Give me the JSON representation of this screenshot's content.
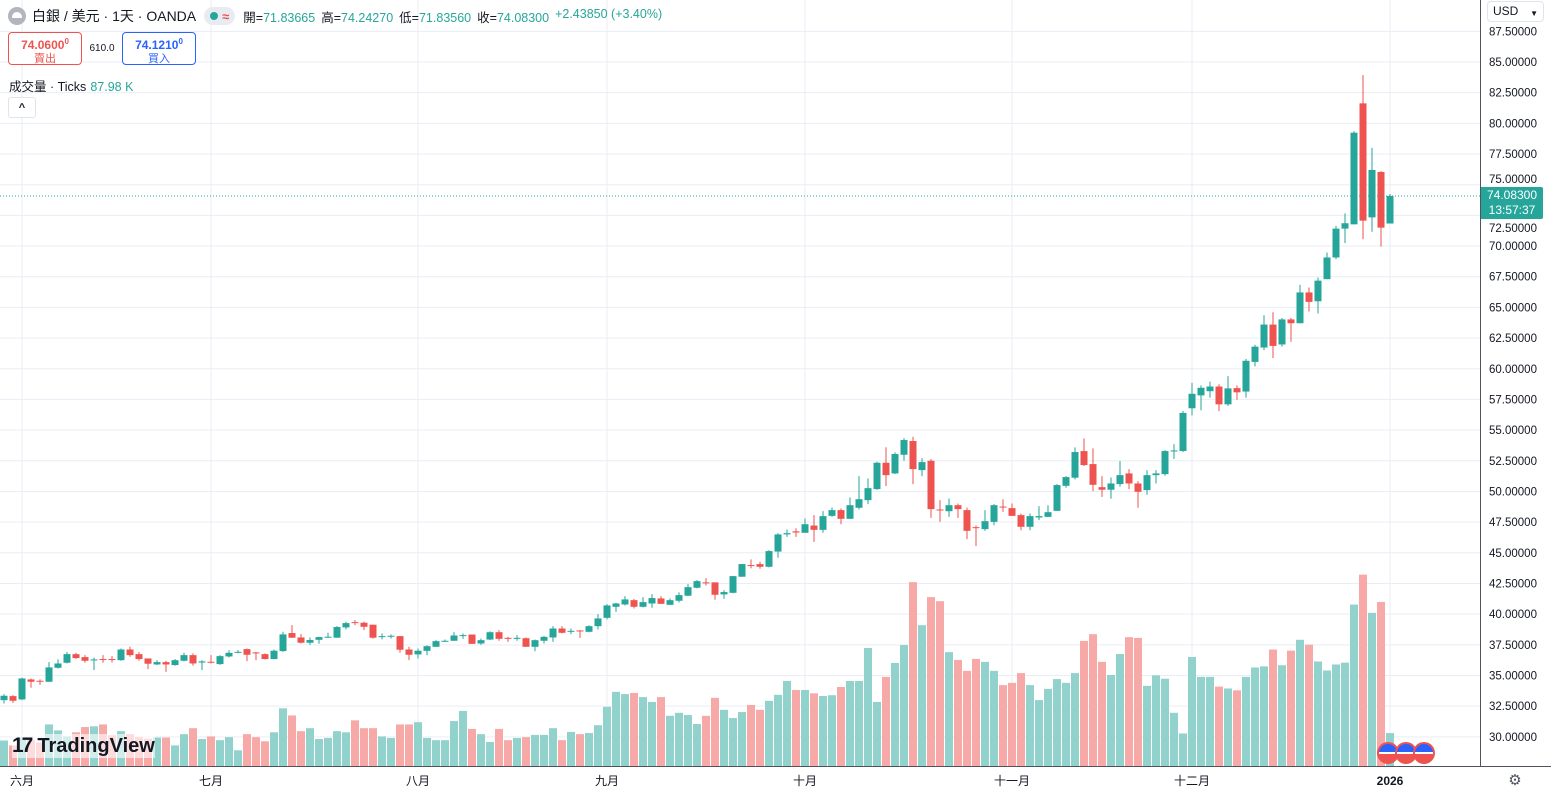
{
  "header": {
    "symbol": "白銀 / 美元 · 1天 · OANDA",
    "open_label": "開=",
    "open": "71.83665",
    "high_label": "高=",
    "high": "74.24270",
    "low_label": "低=",
    "low": "71.83560",
    "close_label": "收=",
    "close": "74.08300",
    "change": "+2.43850 (+3.40%)"
  },
  "trade": {
    "sell_price": "74.0600",
    "sell_super": "0",
    "sell_label": "賣出",
    "spread": "610.0",
    "buy_price": "74.1210",
    "buy_super": "0",
    "buy_label": "買入"
  },
  "volume_legend": {
    "label": "成交量 · Ticks",
    "value": "87.98 K"
  },
  "collapse_icon": "chevron-up-icon",
  "currency": "USD",
  "last_price": {
    "price": "74.08300",
    "countdown": "13:57:37"
  },
  "logo_text": "TradingView",
  "colors": {
    "up": "#26a69a",
    "down": "#ef5350",
    "vol_up": "#92d2cc",
    "vol_down": "#f7a9a7",
    "grid": "#e9eef4"
  },
  "chart_data": {
    "type": "candlestick",
    "title": "白銀 / 美元 · 1天 · OANDA",
    "ylim": [
      27.5,
      87.5
    ],
    "y_ticks": [
      "30.00000",
      "32.50000",
      "35.00000",
      "37.50000",
      "40.00000",
      "42.50000",
      "45.00000",
      "47.50000",
      "50.00000",
      "52.50000",
      "55.00000",
      "57.50000",
      "60.00000",
      "62.50000",
      "65.00000",
      "67.50000",
      "70.00000",
      "72.50000",
      "75.00000",
      "77.50000",
      "80.00000",
      "82.50000",
      "85.00000",
      "87.50000"
    ],
    "time_labels": [
      {
        "label": "六月",
        "index": 2
      },
      {
        "label": "七月",
        "index": 23
      },
      {
        "label": "八月",
        "index": 46
      },
      {
        "label": "九月",
        "index": 67
      },
      {
        "label": "十月",
        "index": 89
      },
      {
        "label": "十一月",
        "index": 112
      },
      {
        "label": "十二月",
        "index": 132
      },
      {
        "label": "2026",
        "index": 154
      }
    ],
    "candle_format": [
      "open",
      "close",
      "high",
      "low"
    ],
    "candles": [
      [
        32.99,
        33.35,
        33.48,
        32.72
      ],
      [
        33.32,
        32.94,
        33.4,
        32.77
      ],
      [
        33.05,
        34.76,
        34.82,
        32.99
      ],
      [
        34.68,
        34.49,
        34.76,
        34.0
      ],
      [
        34.57,
        34.52,
        34.68,
        34.24
      ],
      [
        34.49,
        35.66,
        36.09,
        34.49
      ],
      [
        35.63,
        35.98,
        36.31,
        35.57
      ],
      [
        36.04,
        36.74,
        36.93,
        35.98
      ],
      [
        36.74,
        36.42,
        36.85,
        36.36
      ],
      [
        36.5,
        36.2,
        36.66,
        36.04
      ],
      [
        36.25,
        36.31,
        36.47,
        35.44
      ],
      [
        36.34,
        36.28,
        36.66,
        36.04
      ],
      [
        36.34,
        36.28,
        36.58,
        36.06
      ],
      [
        36.25,
        37.12,
        37.2,
        36.2
      ],
      [
        37.12,
        36.66,
        37.34,
        36.53
      ],
      [
        36.74,
        36.34,
        36.93,
        36.2
      ],
      [
        36.39,
        35.96,
        36.39,
        35.52
      ],
      [
        35.9,
        36.09,
        36.25,
        35.85
      ],
      [
        36.09,
        35.9,
        36.2,
        35.3
      ],
      [
        35.85,
        36.25,
        36.34,
        35.79
      ],
      [
        36.2,
        36.66,
        36.85,
        36.15
      ],
      [
        36.66,
        35.98,
        36.8,
        35.79
      ],
      [
        36.06,
        36.15,
        36.25,
        35.44
      ],
      [
        36.12,
        36.06,
        36.66,
        35.98
      ],
      [
        35.93,
        36.58,
        36.66,
        35.87
      ],
      [
        36.55,
        36.85,
        37.07,
        36.47
      ],
      [
        36.88,
        36.93,
        37.07,
        36.8
      ],
      [
        37.15,
        36.69,
        37.2,
        36.17
      ],
      [
        36.88,
        36.82,
        36.93,
        36.25
      ],
      [
        36.74,
        36.34,
        36.8,
        36.31
      ],
      [
        36.34,
        37.02,
        37.12,
        36.31
      ],
      [
        36.99,
        38.35,
        38.57,
        36.93
      ],
      [
        38.46,
        38.08,
        39.11,
        38.08
      ],
      [
        38.1,
        37.67,
        38.38,
        37.61
      ],
      [
        37.67,
        37.89,
        38.1,
        37.5
      ],
      [
        37.91,
        38.13,
        38.16,
        37.59
      ],
      [
        38.1,
        38.16,
        38.48,
        38.08
      ],
      [
        38.08,
        38.95,
        39.03,
        38.08
      ],
      [
        38.92,
        39.27,
        39.38,
        38.76
      ],
      [
        39.35,
        39.3,
        39.52,
        39.11
      ],
      [
        39.3,
        38.97,
        39.38,
        38.7
      ],
      [
        39.14,
        38.08,
        39.14,
        38.0
      ],
      [
        38.16,
        38.21,
        38.43,
        37.94
      ],
      [
        38.21,
        38.24,
        38.35,
        38.02
      ],
      [
        38.21,
        37.1,
        38.21,
        36.85
      ],
      [
        37.12,
        36.69,
        37.34,
        36.25
      ],
      [
        36.72,
        37.02,
        37.2,
        36.39
      ],
      [
        37.01,
        37.39,
        37.47,
        36.66
      ],
      [
        37.34,
        37.8,
        37.88,
        37.34
      ],
      [
        37.8,
        37.83,
        37.93,
        37.74
      ],
      [
        37.83,
        38.26,
        38.53,
        37.83
      ],
      [
        38.23,
        38.29,
        38.42,
        37.99
      ],
      [
        38.34,
        37.58,
        38.34,
        37.58
      ],
      [
        37.61,
        37.88,
        38.02,
        37.5
      ],
      [
        37.93,
        38.53,
        38.61,
        37.88
      ],
      [
        38.53,
        37.99,
        38.7,
        37.83
      ],
      [
        38.07,
        38.02,
        38.15,
        37.74
      ],
      [
        38.02,
        38.07,
        38.29,
        37.83
      ],
      [
        38.04,
        37.34,
        38.1,
        37.34
      ],
      [
        37.34,
        37.88,
        37.93,
        36.98
      ],
      [
        37.83,
        38.15,
        38.23,
        37.61
      ],
      [
        38.1,
        38.83,
        39.02,
        37.74
      ],
      [
        38.83,
        38.48,
        39.02,
        38.42
      ],
      [
        38.59,
        38.64,
        38.83,
        38.37
      ],
      [
        38.67,
        38.64,
        38.7,
        38.07
      ],
      [
        38.56,
        39.02,
        39.1,
        38.51
      ],
      [
        39.02,
        39.65,
        40.0,
        38.75
      ],
      [
        39.7,
        40.71,
        40.82,
        39.57
      ],
      [
        40.6,
        40.87,
        40.93,
        40.19
      ],
      [
        40.79,
        41.2,
        41.47,
        40.71
      ],
      [
        41.14,
        40.6,
        41.23,
        40.46
      ],
      [
        40.6,
        40.98,
        41.39,
        40.55
      ],
      [
        40.87,
        41.31,
        41.63,
        40.52
      ],
      [
        41.28,
        40.84,
        41.47,
        40.84
      ],
      [
        40.76,
        41.14,
        41.28,
        40.76
      ],
      [
        41.09,
        41.55,
        41.77,
        40.95
      ],
      [
        41.5,
        42.2,
        42.45,
        41.5
      ],
      [
        42.15,
        42.69,
        42.78,
        42.1
      ],
      [
        42.59,
        42.53,
        42.94,
        42.34
      ],
      [
        42.59,
        41.58,
        42.59,
        41.17
      ],
      [
        41.61,
        41.8,
        41.96,
        41.25
      ],
      [
        41.74,
        43.1,
        43.1,
        41.69
      ],
      [
        43.05,
        44.08,
        44.08,
        43.05
      ],
      [
        44.0,
        43.97,
        44.46,
        43.73
      ],
      [
        44.08,
        43.86,
        44.27,
        43.7
      ],
      [
        43.86,
        45.14,
        45.22,
        43.81
      ],
      [
        45.1,
        46.5,
        46.6,
        44.6
      ],
      [
        46.5,
        46.6,
        46.9,
        46.3
      ],
      [
        46.75,
        46.65,
        47.0,
        46.3
      ],
      [
        46.63,
        47.33,
        47.8,
        46.63
      ],
      [
        47.22,
        46.87,
        48.07,
        45.89
      ],
      [
        46.87,
        47.99,
        48.4,
        46.63
      ],
      [
        48.01,
        48.48,
        48.69,
        47.93
      ],
      [
        48.48,
        47.77,
        48.61,
        47.33
      ],
      [
        47.77,
        48.88,
        49.51,
        47.77
      ],
      [
        48.67,
        49.37,
        51.25,
        48.53
      ],
      [
        49.29,
        50.27,
        51.06,
        48.97
      ],
      [
        50.19,
        52.34,
        52.42,
        50.13
      ],
      [
        52.34,
        51.33,
        53.6,
        50.43
      ],
      [
        51.47,
        53.05,
        53.18,
        51.41
      ],
      [
        52.99,
        54.19,
        54.35,
        52.5
      ],
      [
        54.11,
        51.82,
        54.46,
        50.6
      ],
      [
        51.74,
        52.39,
        52.72,
        51.25
      ],
      [
        52.5,
        48.56,
        52.64,
        47.85
      ],
      [
        48.53,
        48.5,
        49.29,
        47.52
      ],
      [
        48.39,
        48.88,
        49.43,
        47.93
      ],
      [
        48.88,
        48.56,
        49.02,
        47.85
      ],
      [
        48.48,
        46.79,
        48.69,
        46.11
      ],
      [
        47.09,
        47.06,
        47.22,
        45.54
      ],
      [
        46.93,
        47.58,
        48.48,
        46.79
      ],
      [
        47.52,
        48.88,
        48.97,
        47.25
      ],
      [
        48.77,
        48.72,
        49.35,
        48.34
      ],
      [
        48.64,
        48.01,
        49.02,
        48.01
      ],
      [
        48.07,
        47.12,
        48.2,
        46.84
      ],
      [
        47.12,
        47.99,
        48.2,
        46.84
      ],
      [
        47.88,
        47.99,
        48.8,
        47.66
      ],
      [
        47.93,
        48.31,
        48.88,
        47.93
      ],
      [
        48.42,
        50.52,
        50.6,
        48.42
      ],
      [
        50.46,
        51.17,
        51.25,
        50.3
      ],
      [
        51.12,
        53.21,
        53.59,
        50.98
      ],
      [
        53.29,
        52.15,
        54.32,
        52.07
      ],
      [
        52.23,
        50.54,
        53.51,
        50.03
      ],
      [
        50.35,
        50.14,
        51.25,
        49.56
      ],
      [
        50.14,
        50.65,
        51.14,
        49.4
      ],
      [
        50.6,
        51.33,
        52.47,
        50.38
      ],
      [
        51.47,
        50.65,
        51.82,
        50.19
      ],
      [
        50.65,
        49.97,
        50.84,
        48.67
      ],
      [
        50.11,
        51.33,
        51.74,
        49.73
      ],
      [
        51.33,
        51.47,
        51.74,
        50.65
      ],
      [
        51.41,
        53.29,
        53.37,
        51.28
      ],
      [
        53.32,
        53.34,
        53.86,
        52.64
      ],
      [
        53.3,
        56.4,
        56.56,
        53.2
      ],
      [
        56.78,
        57.96,
        58.85,
        56.2
      ],
      [
        57.83,
        58.45,
        58.64,
        56.62
      ],
      [
        58.17,
        58.55,
        58.95,
        57.65
      ],
      [
        58.55,
        57.1,
        58.74,
        56.54
      ],
      [
        57.1,
        58.4,
        59.4,
        56.96
      ],
      [
        58.42,
        58.08,
        58.64,
        57.46
      ],
      [
        58.14,
        60.65,
        60.8,
        57.65
      ],
      [
        60.56,
        61.8,
        61.96,
        60.19
      ],
      [
        61.73,
        63.6,
        64.36,
        61.52
      ],
      [
        63.6,
        61.86,
        64.6,
        60.87
      ],
      [
        61.98,
        64.02,
        64.14,
        61.8
      ],
      [
        64.02,
        63.71,
        64.14,
        62.2
      ],
      [
        63.71,
        66.22,
        66.84,
        63.71
      ],
      [
        66.22,
        65.45,
        66.62,
        64.67
      ],
      [
        65.5,
        67.18,
        67.43,
        64.5
      ],
      [
        67.3,
        69.07,
        69.47,
        67.3
      ],
      [
        69.07,
        71.42,
        71.64,
        68.92
      ],
      [
        71.42,
        71.86,
        72.66,
        70.25
      ],
      [
        71.77,
        79.24,
        79.37,
        71.77
      ],
      [
        81.63,
        72.07,
        83.94,
        70.55
      ],
      [
        72.34,
        76.2,
        78.0,
        71.17
      ],
      [
        76.04,
        71.5,
        76.1,
        69.95
      ],
      [
        71.83665,
        74.083,
        74.2427,
        71.8356
      ]
    ],
    "volume_unit": "K ticks",
    "volumes": [
      68,
      55,
      76,
      70,
      63,
      111,
      95,
      79,
      90,
      104,
      106,
      111,
      82,
      93,
      85,
      77,
      73,
      76,
      76,
      55,
      85,
      101,
      72,
      79,
      69,
      77,
      42,
      85,
      77,
      66,
      90,
      154,
      135,
      93,
      101,
      72,
      75,
      93,
      90,
      122,
      101,
      101,
      79,
      75,
      111,
      111,
      117,
      75,
      69,
      69,
      120,
      147,
      99,
      85,
      64,
      99,
      69,
      75,
      77,
      83,
      83,
      101,
      69,
      91,
      85,
      88,
      109,
      158,
      198,
      192,
      195,
      184,
      171,
      184,
      134,
      142,
      136,
      112,
      134,
      182,
      150,
      128,
      144,
      163,
      150,
      174,
      190,
      227,
      203,
      203,
      194,
      187,
      189,
      211,
      227,
      227,
      315,
      171,
      238,
      275,
      323,
      491,
      376,
      451,
      440,
      304,
      283,
      254,
      286,
      278,
      254,
      216,
      222,
      248,
      216,
      176,
      206,
      232,
      222,
      248,
      334,
      352,
      278,
      243,
      299,
      344,
      342,
      214,
      242,
      233,
      142,
      87,
      291,
      238,
      238,
      212,
      207,
      202,
      238,
      263,
      266,
      311,
      269,
      308,
      337,
      324,
      279,
      255,
      271,
      276,
      431,
      511,
      409,
      438,
      87.98
    ],
    "last_price_line": 74.083
  }
}
